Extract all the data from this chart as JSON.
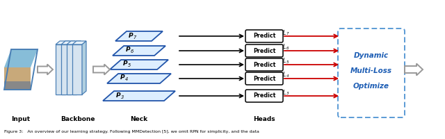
{
  "fig_width": 6.4,
  "fig_height": 2.0,
  "dpi": 100,
  "bg_color": "#ffffff",
  "input_label": "Input",
  "backbone_label": "Backbone",
  "neck_label": "Neck",
  "heads_label": "Heads",
  "caption": "Figure 3:   An overview of our learning strategy. Following MMDetection [5], we omit RPN for simplicity, and the data",
  "pyramid_labels": [
    "P7",
    "P6",
    "P5",
    "P4",
    "P3"
  ],
  "loss_labels": [
    "L7",
    "L6",
    "L5",
    "L4",
    "L3"
  ],
  "dynamic_text": [
    "Dynamic",
    "Multi-Loss",
    "Optimize"
  ],
  "predict_text": "Predict",
  "blue_color": "#1f5fb5",
  "dashed_blue": "#5b9bd5",
  "red_color": "#cc0000",
  "layer_face": "#d6e4f0",
  "layer_edge": "#4a7fb5",
  "layer_top": "#e8f2fa",
  "layer_side": "#b0cfe0",
  "para_face": "#ddeeff",
  "para_edge": "#2255aa",
  "arrow_gray": "#888888"
}
